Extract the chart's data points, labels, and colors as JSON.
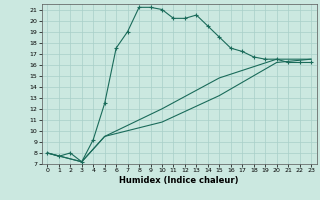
{
  "xlabel": "Humidex (Indice chaleur)",
  "bg_color": "#cbe8e0",
  "grid_color": "#a8cfc8",
  "line_color": "#1a6b5a",
  "xlim": [
    -0.5,
    23.5
  ],
  "ylim": [
    7,
    21.5
  ],
  "xticks": [
    0,
    1,
    2,
    3,
    4,
    5,
    6,
    7,
    8,
    9,
    10,
    11,
    12,
    13,
    14,
    15,
    16,
    17,
    18,
    19,
    20,
    21,
    22,
    23
  ],
  "yticks": [
    7,
    8,
    9,
    10,
    11,
    12,
    13,
    14,
    15,
    16,
    17,
    18,
    19,
    20,
    21
  ],
  "line1_x": [
    0,
    1,
    2,
    3,
    4,
    5,
    6,
    7,
    8,
    9,
    10,
    11,
    12,
    13,
    14,
    15,
    16,
    17,
    18,
    19,
    20,
    21,
    22,
    23
  ],
  "line1_y": [
    8.0,
    7.7,
    8.0,
    7.2,
    9.2,
    12.5,
    17.5,
    19.0,
    21.2,
    21.2,
    21.0,
    20.2,
    20.2,
    20.5,
    19.5,
    18.5,
    17.5,
    17.2,
    16.7,
    16.5,
    16.5,
    16.2,
    16.2,
    16.2
  ],
  "line2_x": [
    0,
    3,
    5,
    10,
    15,
    20,
    23
  ],
  "line2_y": [
    8.0,
    7.2,
    9.5,
    10.8,
    13.2,
    16.2,
    16.5
  ],
  "line3_x": [
    0,
    3,
    5,
    10,
    15,
    20,
    23
  ],
  "line3_y": [
    8.0,
    7.2,
    9.5,
    12.0,
    14.8,
    16.5,
    16.5
  ]
}
